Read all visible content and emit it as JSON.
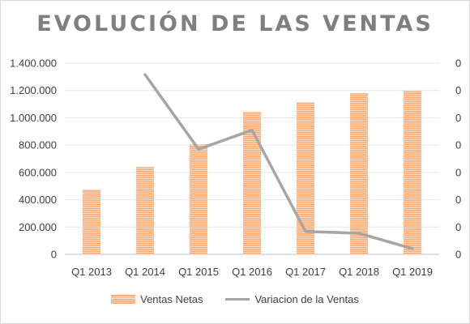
{
  "chart_data": {
    "type": "bar",
    "title": "EVOLUCIÓN DE LAS VENTAS",
    "categories": [
      "Q1 2013",
      "Q1 2014",
      "Q1 2015",
      "Q1 2016",
      "Q1 2017",
      "Q1 2018",
      "Q1 2019"
    ],
    "ylim": [
      0,
      1400000
    ],
    "y_ticks": [
      "0",
      "200.000",
      "400.000",
      "600.000",
      "800.000",
      "1.000.000",
      "1.200.000",
      "1.400.000"
    ],
    "y2_ticks": [
      "0",
      "0",
      "0",
      "0",
      "0",
      "0",
      "0",
      "0"
    ],
    "grid": true,
    "legend_position": "bottom",
    "series": [
      {
        "name": "Ventas Netas",
        "type": "bar",
        "axis": "left",
        "color": "#f4a36b",
        "values": [
          475000,
          640000,
          805000,
          1045000,
          1115000,
          1180000,
          1200000
        ]
      },
      {
        "name": "Variacion de la Ventas",
        "type": "line",
        "axis": "right",
        "color": "#a5a5a5",
        "y_fraction_of_axis": [
          null,
          0.94,
          0.55,
          0.65,
          0.12,
          0.11,
          0.03
        ]
      }
    ]
  }
}
